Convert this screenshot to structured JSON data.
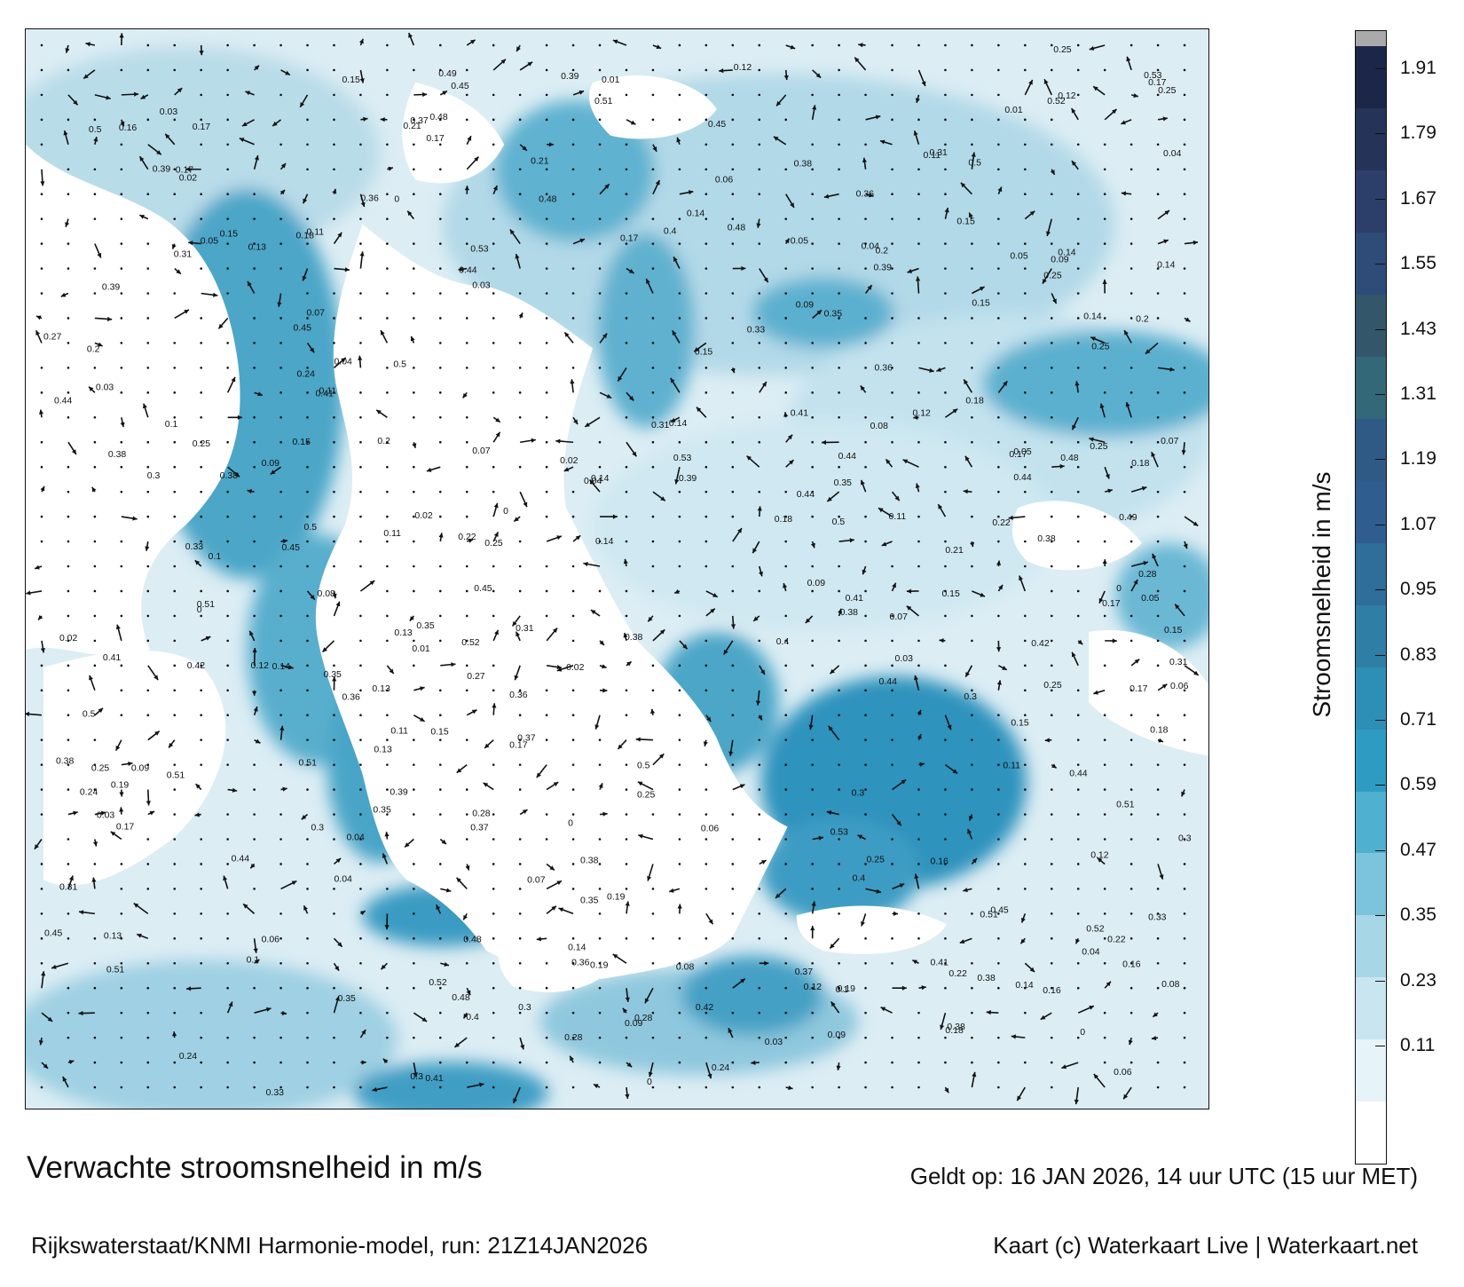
{
  "title": "Verwachte stroomsnelheid in m/s",
  "model_run": "Rijkswaterstaat/KNMI Harmonie-model, run: 21Z14JAN2026",
  "valid_time": "Geldt op: 16 JAN 2026, 14 uur UTC (15 uur MET)",
  "credit": "Kaart (c) Waterkaart Live | Waterkaart.net",
  "colorbar": {
    "label": "Stroomsnelheid in m/s",
    "ticks": [
      "0.11",
      "0.23",
      "0.35",
      "0.47",
      "0.59",
      "0.71",
      "0.83",
      "0.95",
      "1.07",
      "1.19",
      "1.31",
      "1.43",
      "1.55",
      "1.67",
      "1.79",
      "1.91"
    ],
    "colors": [
      "#ffffff",
      "#e6f3f8",
      "#c9e6f0",
      "#a7d7e7",
      "#7cc4dc",
      "#4fb0cf",
      "#2e9cc2",
      "#2e8fb6",
      "#2f7ea6",
      "#2f6d9a",
      "#305d90",
      "#305a86",
      "#326878",
      "#33566b",
      "#2f4b78",
      "#2c3f6b",
      "#243357",
      "#1c2648",
      "#aaaaaa"
    ]
  },
  "annotations": [
    {
      "t": "0.17"
    },
    {
      "t": "0.13"
    },
    {
      "t": "0.12"
    },
    {
      "t": "0.14"
    },
    {
      "t": "0.15"
    },
    {
      "t": "0.16"
    },
    {
      "t": "0.2"
    },
    {
      "t": "0.21"
    },
    {
      "t": "0.19"
    },
    {
      "t": "0.18"
    },
    {
      "t": "0.22"
    },
    {
      "t": "0.24"
    },
    {
      "t": "0.25"
    },
    {
      "t": "0.27"
    },
    {
      "t": "0.28"
    },
    {
      "t": "0.3"
    },
    {
      "t": "0.31"
    },
    {
      "t": "0.33"
    },
    {
      "t": "0.35"
    },
    {
      "t": "0.36"
    },
    {
      "t": "0.37"
    },
    {
      "t": "0.38"
    },
    {
      "t": "0.39"
    },
    {
      "t": "0.4"
    },
    {
      "t": "0.41"
    },
    {
      "t": "0.42"
    },
    {
      "t": "0.44"
    },
    {
      "t": "0.45"
    },
    {
      "t": "0.48"
    },
    {
      "t": "0.49"
    },
    {
      "t": "0.5"
    },
    {
      "t": "0.51"
    },
    {
      "t": "0.52"
    },
    {
      "t": "0.53"
    },
    {
      "t": "0.1"
    },
    {
      "t": "0.11"
    },
    {
      "t": "0.09"
    },
    {
      "t": "0.08"
    },
    {
      "t": "0.07"
    },
    {
      "t": "0.06"
    },
    {
      "t": "0.05"
    },
    {
      "t": "0.04"
    },
    {
      "t": "0.03"
    },
    {
      "t": "0.02"
    },
    {
      "t": "0.01"
    },
    {
      "t": "0"
    }
  ]
}
